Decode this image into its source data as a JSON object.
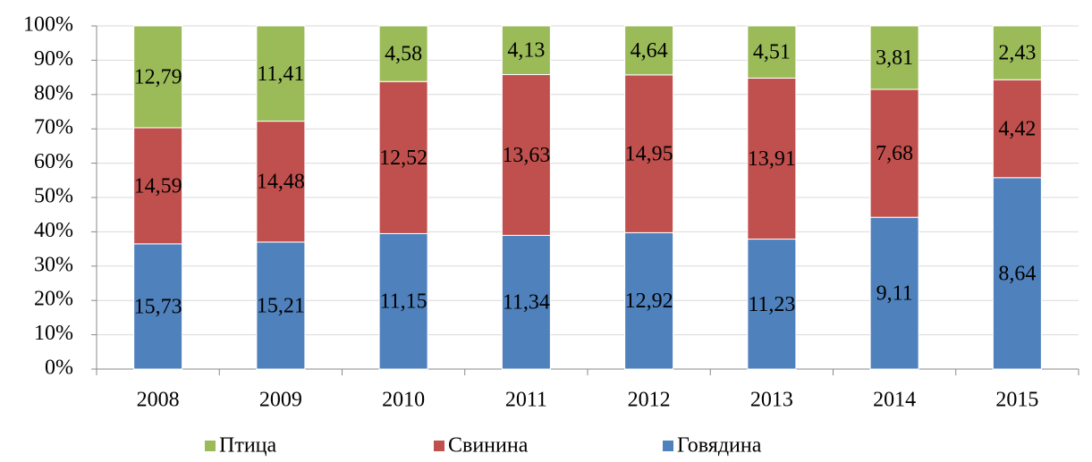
{
  "chart_data": {
    "type": "bar",
    "stacking": "percent",
    "categories": [
      "2008",
      "2009",
      "2010",
      "2011",
      "2012",
      "2013",
      "2014",
      "2015"
    ],
    "series": [
      {
        "name": "Говядина",
        "color": "#4f81bd",
        "values": [
          15.73,
          15.21,
          11.15,
          11.34,
          12.92,
          11.23,
          9.11,
          8.64
        ],
        "value_labels": [
          "15,73",
          "15,21",
          "11,15",
          "11,34",
          "12,92",
          "11,23",
          "9,11",
          "8,64"
        ]
      },
      {
        "name": "Свинина",
        "color": "#c0504d",
        "values": [
          14.59,
          14.48,
          12.52,
          13.63,
          14.95,
          13.91,
          7.68,
          4.42
        ],
        "value_labels": [
          "14,59",
          "14,48",
          "12,52",
          "13,63",
          "14,95",
          "13,91",
          "7,68",
          "4,42"
        ]
      },
      {
        "name": "Птица",
        "color": "#9bbb59",
        "values": [
          12.79,
          11.41,
          4.58,
          4.13,
          4.64,
          4.51,
          3.81,
          2.43
        ],
        "value_labels": [
          "12,79",
          "11,41",
          "4,58",
          "4,13",
          "4,64",
          "4,51",
          "3,81",
          "2,43"
        ]
      }
    ],
    "ylim": [
      0,
      100
    ],
    "yticks": [
      {
        "value": 0,
        "label": "0%"
      },
      {
        "value": 10,
        "label": "10%"
      },
      {
        "value": 20,
        "label": "20%"
      },
      {
        "value": 30,
        "label": "30%"
      },
      {
        "value": 40,
        "label": "40%"
      },
      {
        "value": 50,
        "label": "50%"
      },
      {
        "value": 60,
        "label": "60%"
      },
      {
        "value": 70,
        "label": "70%"
      },
      {
        "value": 80,
        "label": "80%"
      },
      {
        "value": 90,
        "label": "90%"
      },
      {
        "value": 100,
        "label": "100%"
      }
    ],
    "grid": true,
    "legend": "bottom"
  }
}
